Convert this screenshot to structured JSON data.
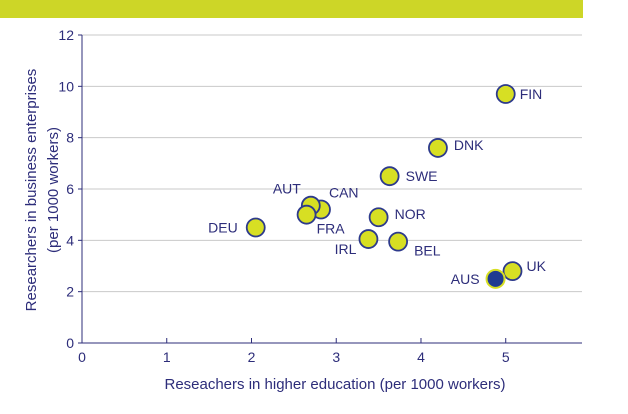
{
  "chart_data": {
    "type": "scatter",
    "title": "",
    "xlabel": "Reseachers in higher education (per 1000 workers)",
    "ylabel_line1": "Researchers in business enterprises",
    "ylabel_line2": "(per 1000 workers)",
    "xlim": [
      0,
      5.9
    ],
    "ylim": [
      0,
      12
    ],
    "x_ticks": [
      0,
      1,
      2,
      3,
      4,
      5
    ],
    "y_ticks": [
      0,
      2,
      4,
      6,
      8,
      10,
      12
    ],
    "grid": "horizontal",
    "marker_color": "#d7df23",
    "marker_edge": "#2d3a8c",
    "highlight_color": "#1f3b91",
    "points": [
      {
        "label": "FIN",
        "x": 5.0,
        "y": 9.7,
        "highlight": false
      },
      {
        "label": "DNK",
        "x": 4.2,
        "y": 7.6,
        "highlight": false
      },
      {
        "label": "SWE",
        "x": 3.63,
        "y": 6.5,
        "highlight": false
      },
      {
        "label": "CAN",
        "x": 2.82,
        "y": 5.2,
        "highlight": false
      },
      {
        "label": "AUT",
        "x": 2.7,
        "y": 5.35,
        "highlight": false
      },
      {
        "label": "FRA",
        "x": 2.65,
        "y": 5.0,
        "highlight": false
      },
      {
        "label": "DEU",
        "x": 2.05,
        "y": 4.5,
        "highlight": false
      },
      {
        "label": "NOR",
        "x": 3.5,
        "y": 4.9,
        "highlight": false
      },
      {
        "label": "IRL",
        "x": 3.38,
        "y": 4.05,
        "highlight": false
      },
      {
        "label": "BEL",
        "x": 3.73,
        "y": 3.95,
        "highlight": false
      },
      {
        "label": "UK",
        "x": 5.08,
        "y": 2.8,
        "highlight": false
      },
      {
        "label": "AUS",
        "x": 4.88,
        "y": 2.5,
        "highlight": true
      }
    ]
  }
}
